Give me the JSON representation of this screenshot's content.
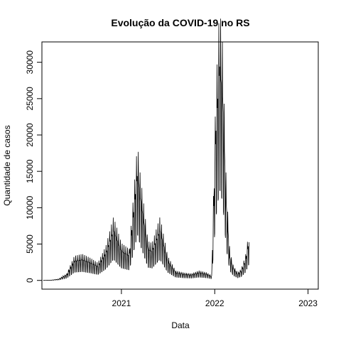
{
  "chart_data": {
    "type": "line",
    "title": "Evolução da COVID-19 no RS",
    "xlabel": "Data",
    "ylabel": "Quantidade de casos",
    "x_ticks": [
      {
        "value": "2021-01-01",
        "label": "2021"
      },
      {
        "value": "2022-01-01",
        "label": "2022"
      },
      {
        "value": "2023-01-01",
        "label": "2023"
      }
    ],
    "y_ticks": [
      0,
      5000,
      10000,
      15000,
      20000,
      25000,
      30000
    ],
    "xlim": [
      "2020-02-25",
      "2023-02-10"
    ],
    "ylim": [
      -1200,
      32800
    ],
    "series": [
      {
        "color": "#000000",
        "points": [
          [
            "2020-03-01",
            0
          ],
          [
            "2020-04-01",
            30
          ],
          [
            "2020-05-01",
            150
          ],
          [
            "2020-06-01",
            700
          ],
          [
            "2020-07-01",
            2500
          ],
          [
            "2020-08-01",
            2700
          ],
          [
            "2020-09-01",
            2300
          ],
          [
            "2020-10-01",
            1800
          ],
          [
            "2020-11-01",
            3500
          ],
          [
            "2020-12-01",
            6500
          ],
          [
            "2021-01-01",
            3800
          ],
          [
            "2021-02-01",
            3200
          ],
          [
            "2021-03-05",
            14000
          ],
          [
            "2021-03-15",
            11000
          ],
          [
            "2021-04-15",
            4000
          ],
          [
            "2021-05-01",
            3800
          ],
          [
            "2021-06-01",
            6500
          ],
          [
            "2021-07-01",
            2500
          ],
          [
            "2021-08-01",
            1000
          ],
          [
            "2021-09-01",
            800
          ],
          [
            "2021-10-01",
            700
          ],
          [
            "2021-11-01",
            1000
          ],
          [
            "2021-12-01",
            800
          ],
          [
            "2021-12-20",
            500
          ],
          [
            "2022-01-05",
            19000
          ],
          [
            "2022-01-20",
            28000
          ],
          [
            "2022-02-01",
            24000
          ],
          [
            "2022-02-15",
            10000
          ],
          [
            "2022-03-01",
            3000
          ],
          [
            "2022-03-15",
            1500
          ],
          [
            "2022-04-01",
            800
          ],
          [
            "2022-04-15",
            1200
          ],
          [
            "2022-05-01",
            2500
          ],
          [
            "2022-05-15",
            5000
          ]
        ]
      }
    ]
  }
}
